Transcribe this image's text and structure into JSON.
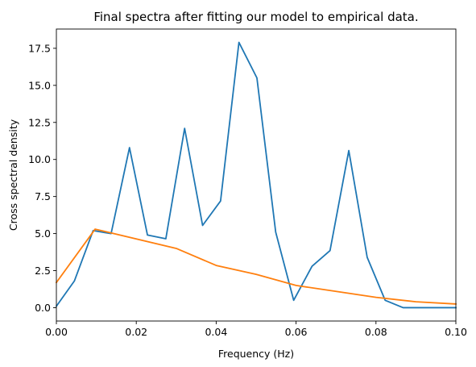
{
  "chart_data": {
    "type": "line",
    "title": "Final spectra after fitting our model to empirical data.",
    "xlabel": "Frequency (Hz)",
    "ylabel": "Cross spectral density",
    "xlim": [
      0.0,
      0.1
    ],
    "ylim": [
      -0.9,
      18.8
    ],
    "xticks": [
      0.0,
      0.02,
      0.04,
      0.06,
      0.08,
      0.1
    ],
    "xtick_labels": [
      "0.00",
      "0.02",
      "0.04",
      "0.06",
      "0.08",
      "0.10"
    ],
    "yticks": [
      0.0,
      2.5,
      5.0,
      7.5,
      10.0,
      12.5,
      15.0,
      17.5
    ],
    "ytick_labels": [
      "0.0",
      "2.5",
      "5.0",
      "7.5",
      "10.0",
      "12.5",
      "15.0",
      "17.5"
    ],
    "grid": false,
    "legend": "none",
    "series": [
      {
        "color": "#1f77b4",
        "x": [
          0.0,
          0.0045,
          0.0092,
          0.0137,
          0.0183,
          0.0228,
          0.0274,
          0.0321,
          0.0366,
          0.0411,
          0.0457,
          0.0502,
          0.0549,
          0.0594,
          0.064,
          0.0685,
          0.0732,
          0.0778,
          0.0823,
          0.0868,
          0.0915,
          0.096,
          0.1
        ],
        "values": [
          0.1,
          1.8,
          5.2,
          5.0,
          10.8,
          4.9,
          4.65,
          12.1,
          5.55,
          7.2,
          17.9,
          15.5,
          5.1,
          0.5,
          2.8,
          3.85,
          10.6,
          3.4,
          0.5,
          0.0,
          0.0,
          0.0,
          0.0
        ]
      },
      {
        "color": "#ff7f0e",
        "x": [
          0.0,
          0.0097,
          0.03,
          0.04,
          0.05,
          0.06,
          0.07,
          0.08,
          0.09,
          0.1
        ],
        "values": [
          1.7,
          5.3,
          4.0,
          2.85,
          2.25,
          1.5,
          1.1,
          0.7,
          0.4,
          0.25
        ]
      }
    ]
  }
}
